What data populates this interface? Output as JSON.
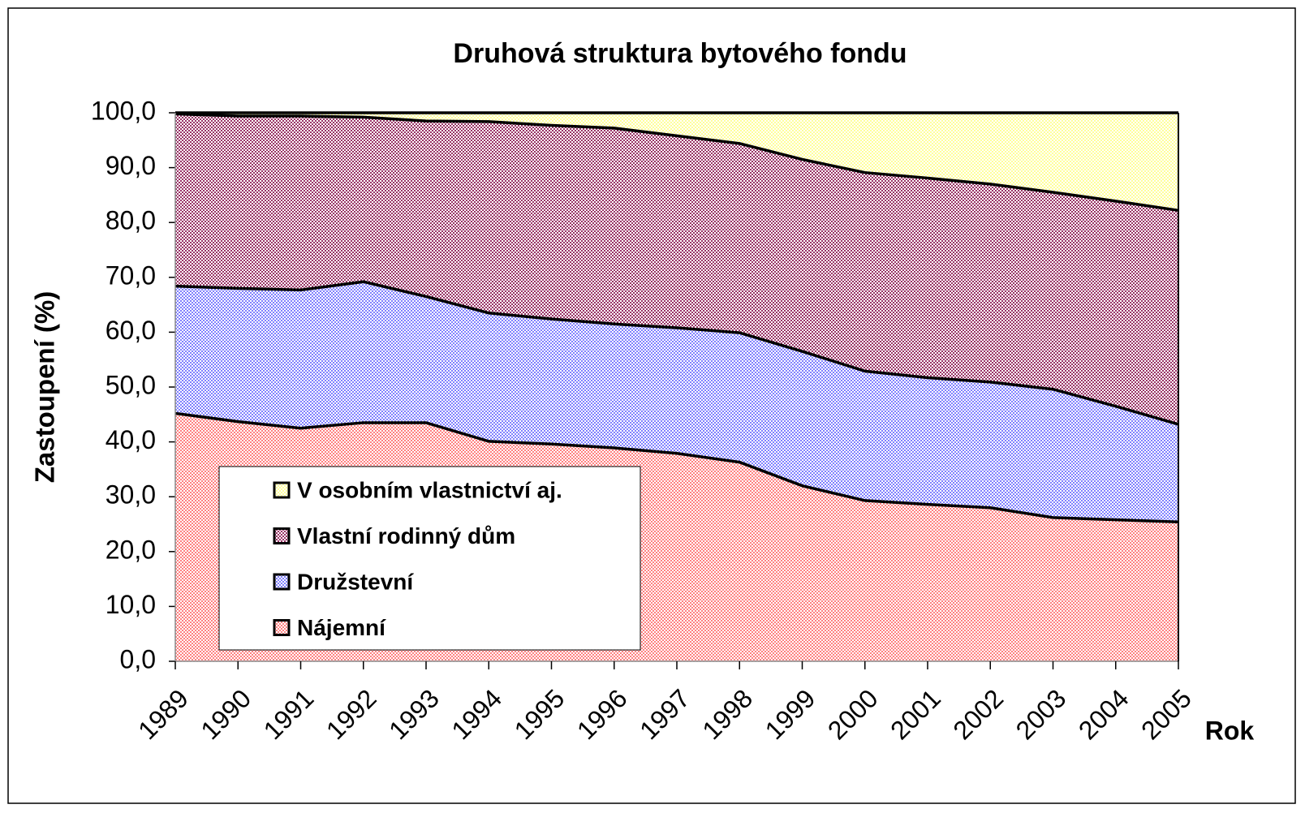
{
  "chart_data": {
    "type": "stacked_area",
    "title": "Druhová struktura bytového fondu",
    "x_label": "Rok",
    "y_label": "Zastoupení (%)",
    "categories": [
      "1989",
      "1990",
      "1991",
      "1992",
      "1993",
      "1994",
      "1995",
      "1996",
      "1997",
      "1998",
      "1999",
      "2000",
      "2001",
      "2002",
      "2003",
      "2004",
      "2005"
    ],
    "series": [
      {
        "name": "Nájemní",
        "color": "#ff8080",
        "values": [
          45.2,
          43.7,
          42.5,
          43.5,
          43.5,
          40.1,
          39.6,
          38.9,
          37.9,
          36.3,
          32.0,
          29.3,
          28.6,
          28.0,
          26.2,
          25.8,
          25.4
        ]
      },
      {
        "name": "Družstevní",
        "color": "#8080ff",
        "values": [
          23.2,
          24.3,
          25.2,
          25.7,
          23.0,
          23.4,
          22.8,
          22.6,
          22.9,
          23.6,
          24.5,
          23.6,
          23.1,
          22.9,
          23.4,
          20.7,
          17.8
        ]
      },
      {
        "name": "Vlastní rodinný dům",
        "color": "#993366",
        "values": [
          31.4,
          31.4,
          31.7,
          30.0,
          32.0,
          34.9,
          35.3,
          35.7,
          35.0,
          34.5,
          35.0,
          36.2,
          36.4,
          36.1,
          35.9,
          37.4,
          39.0
        ]
      },
      {
        "name": "V osobním vlastnictví aj.",
        "color": "#ffff99",
        "values": [
          0.2,
          0.6,
          0.6,
          0.8,
          1.5,
          1.6,
          2.3,
          2.8,
          4.2,
          5.6,
          8.5,
          10.9,
          11.9,
          13.0,
          14.5,
          16.1,
          17.8
        ]
      }
    ],
    "ylim": [
      0,
      100
    ],
    "yticks": [
      {
        "value": 0,
        "label": "0,0"
      },
      {
        "value": 10,
        "label": "10,0"
      },
      {
        "value": 20,
        "label": "20,0"
      },
      {
        "value": 30,
        "label": "30,0"
      },
      {
        "value": 40,
        "label": "40,0"
      },
      {
        "value": 50,
        "label": "50,0"
      },
      {
        "value": 60,
        "label": "60,0"
      },
      {
        "value": 70,
        "label": "70,0"
      },
      {
        "value": 80,
        "label": "80,0"
      },
      {
        "value": 90,
        "label": "90,0"
      },
      {
        "value": 100,
        "label": "100,0"
      }
    ],
    "legend": "lower left"
  }
}
